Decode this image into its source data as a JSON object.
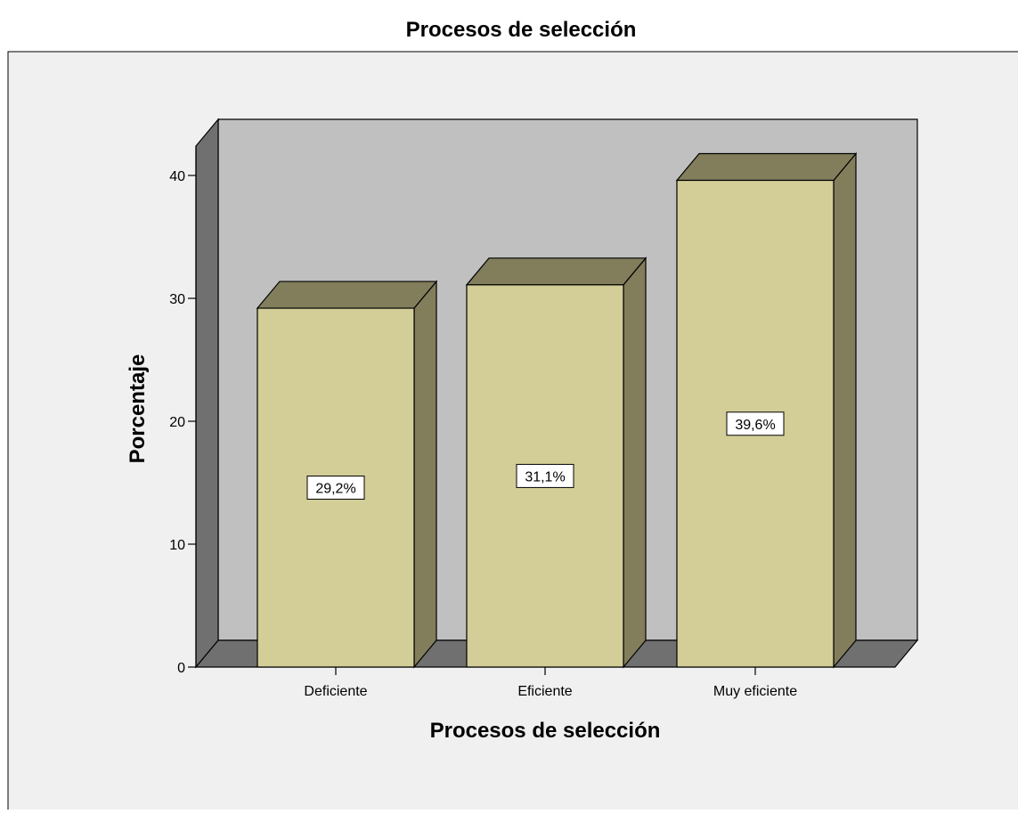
{
  "chart_data": {
    "type": "bar",
    "title": "Procesos de selección",
    "xlabel": "Procesos de selección",
    "ylabel": "Porcentaje",
    "categories": [
      "Deficiente",
      "Eficiente",
      "Muy eficiente"
    ],
    "values": [
      29.2,
      31.1,
      39.6
    ],
    "data_labels": [
      "29,2%",
      "31,1%",
      "39,6%"
    ],
    "yticks": [
      "0",
      "10",
      "20",
      "30",
      "40"
    ],
    "ylim": [
      0,
      44
    ],
    "grid": false,
    "legend": "none",
    "style": "3d",
    "colors": {
      "page_background": "#ffffff",
      "panel_background": "#f0f0f0",
      "wall": "#c0c0c0",
      "side_wall": "#707070",
      "floor": "#707070",
      "bar_front": "#d3ce97",
      "bar_top": "#827e5c",
      "bar_side": "#827e5c",
      "label_box": "#ffffff",
      "axis": "#000000"
    }
  }
}
